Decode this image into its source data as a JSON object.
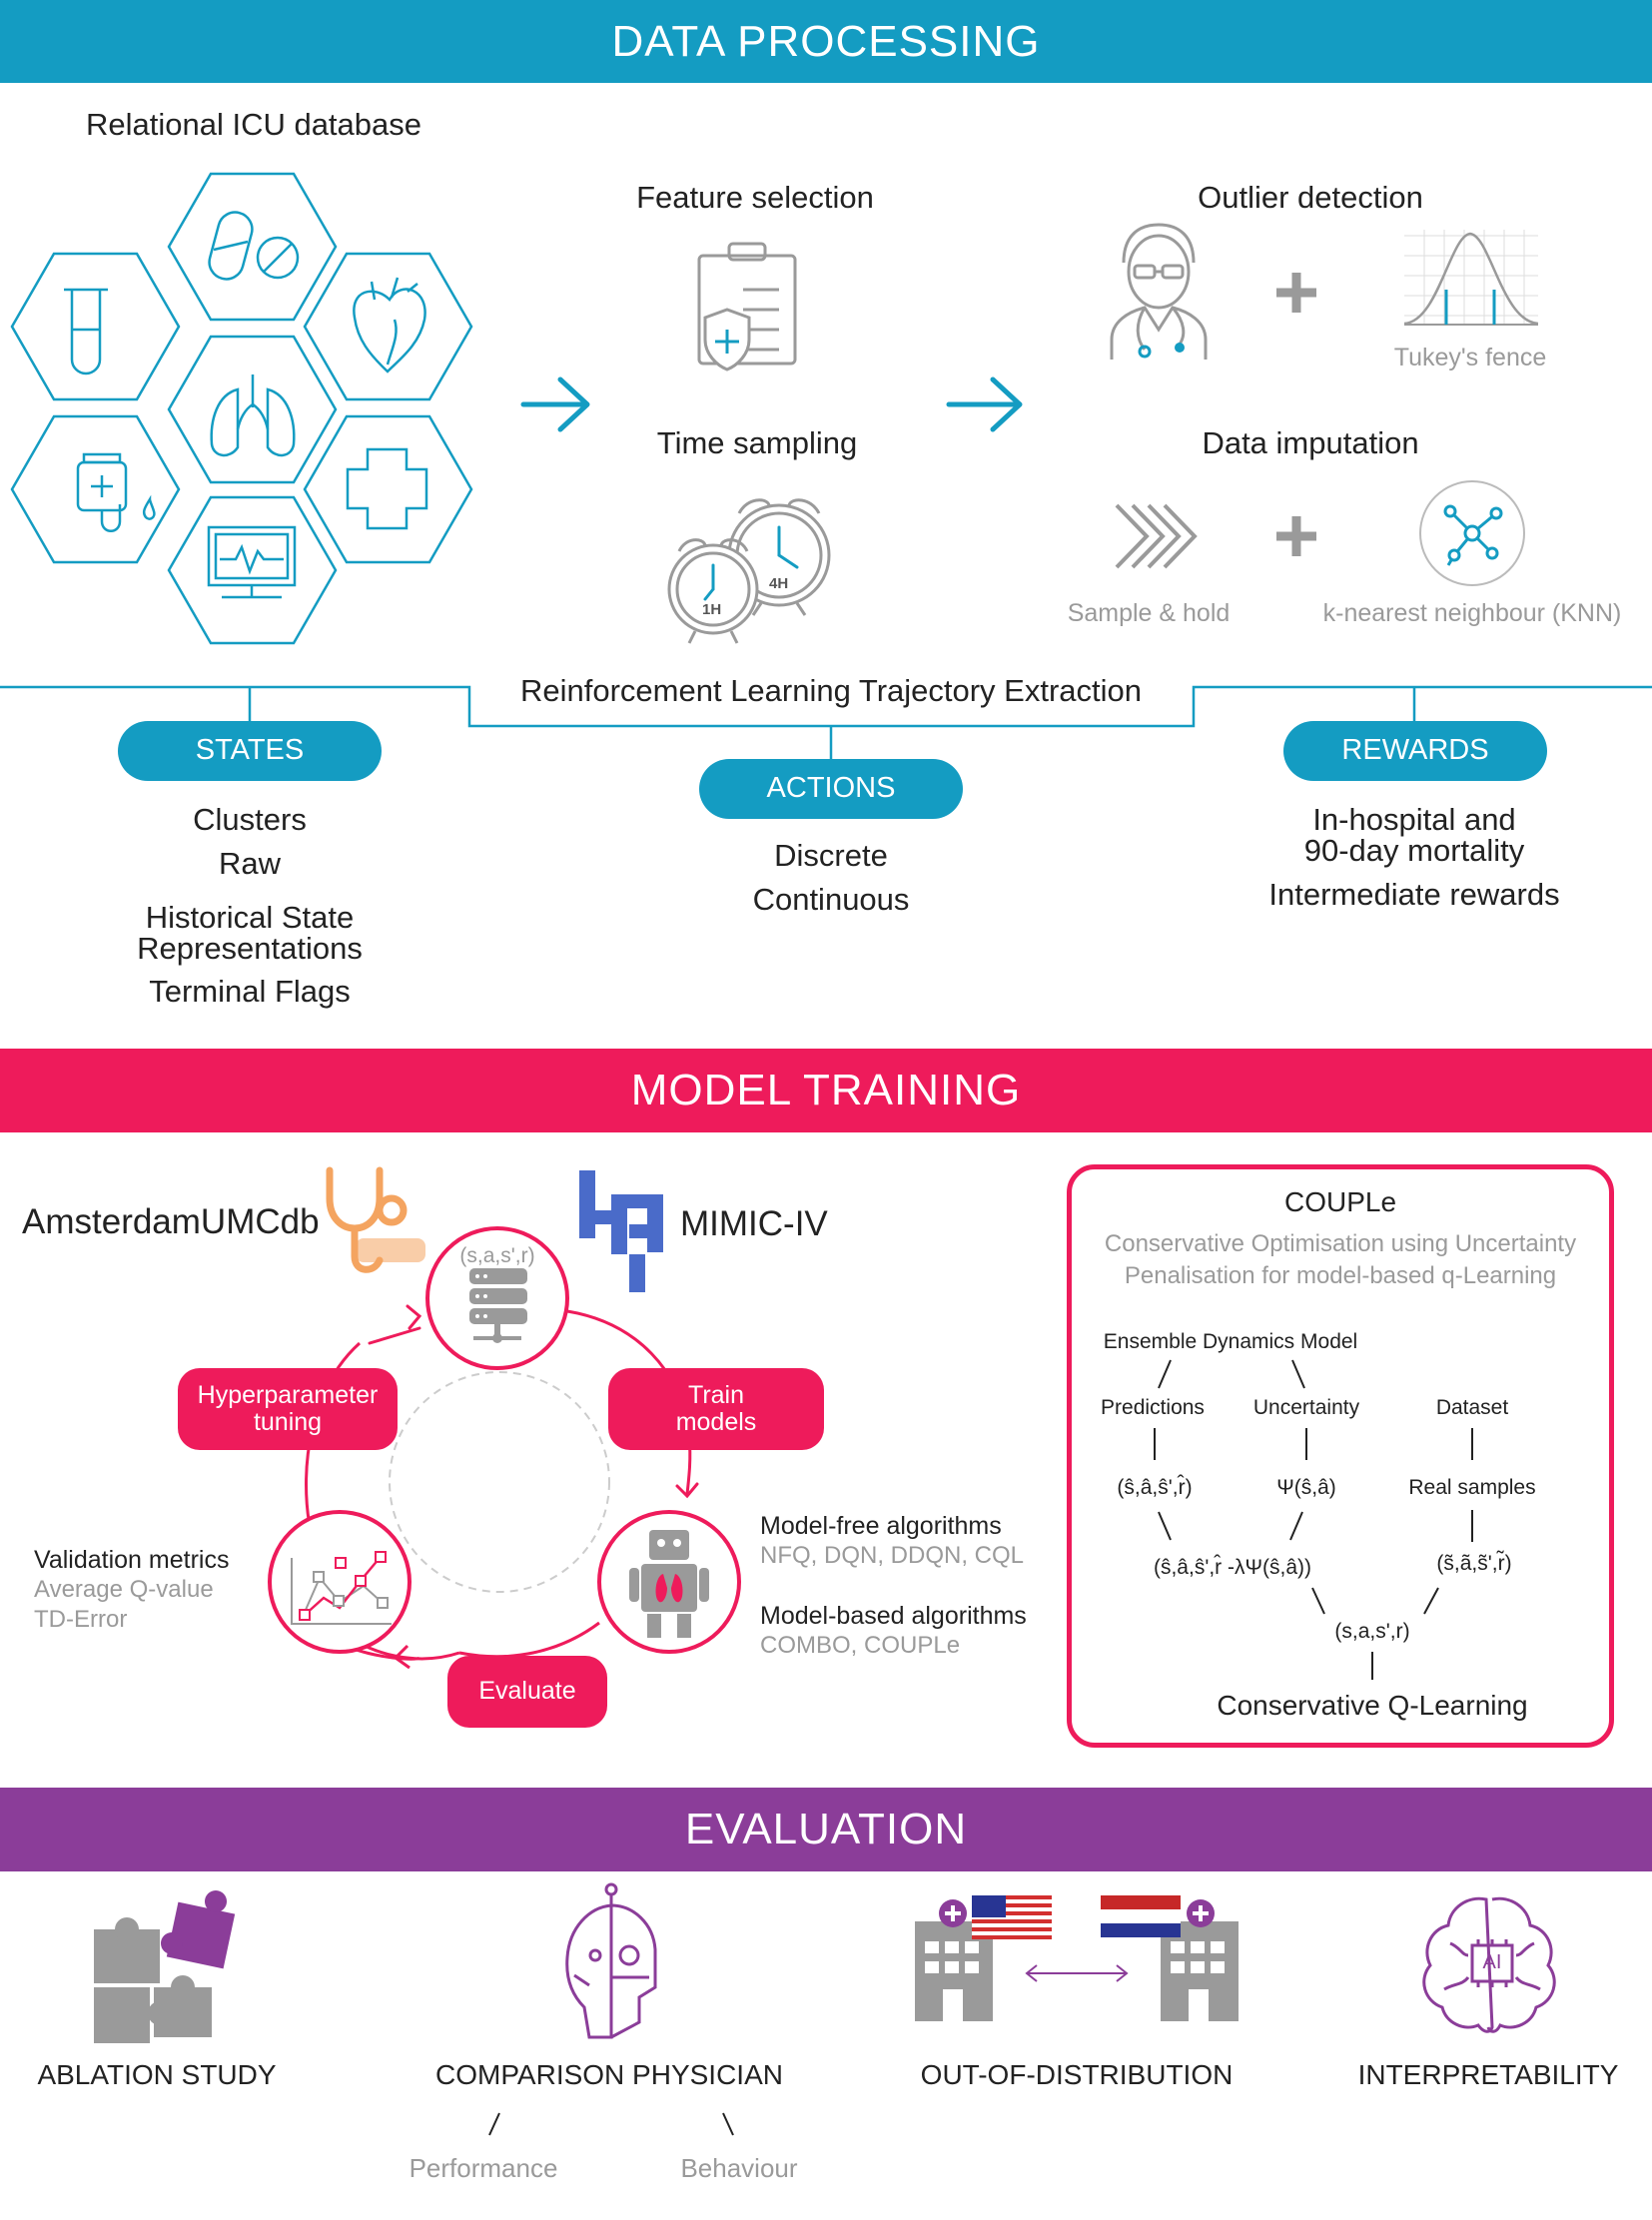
{
  "colors": {
    "processing": "#149cc2",
    "training": "#ee1b5b",
    "evaluation": "#8b3d99",
    "gray": "#9a9a9a"
  },
  "processing": {
    "banner": "DATA PROCESSING",
    "database_label": "Relational ICU database",
    "feature_selection": "Feature selection",
    "time_sampling": "Time sampling",
    "clock_1h": "1H",
    "clock_4h": "4H",
    "outlier_detection": "Outlier detection",
    "tukey": "Tukey's fence",
    "data_imputation": "Data imputation",
    "sample_hold": "Sample & hold",
    "knn": "k-nearest neighbour (KNN)",
    "trajectory": "Reinforcement Learning Trajectory Extraction",
    "states": {
      "label": "STATES",
      "items": [
        "Clusters",
        "Raw",
        "Historical State",
        "Representations",
        "Terminal Flags"
      ]
    },
    "actions": {
      "label": "ACTIONS",
      "items": [
        "Discrete",
        "Continuous"
      ]
    },
    "rewards": {
      "label": "REWARDS",
      "items": [
        "In-hospital and",
        "90-day mortality",
        "Intermediate rewards"
      ]
    }
  },
  "training": {
    "banner": "MODEL TRAINING",
    "amsterdam": "AmsterdamUMCdb",
    "mimic": "MIMIC-IV",
    "tuple": "(s,a,s',r)",
    "hyper": [
      "Hyperparameter",
      "tuning"
    ],
    "train": [
      "Train",
      "models"
    ],
    "evaluate": "Evaluate",
    "validation": {
      "title": "Validation metrics",
      "items": [
        "Average Q-value",
        "TD-Error"
      ]
    },
    "model_free": {
      "title": "Model-free algorithms",
      "items": "NFQ, DQN, DDQN, CQL"
    },
    "model_based": {
      "title": "Model-based algorithms",
      "items": "COMBO, COUPLe"
    },
    "couple": {
      "title": "COUPLe",
      "subtitle1": "Conservative Optimisation using Uncertainty",
      "subtitle2": "Penalisation for model-based q-Learning",
      "ensemble": "Ensemble Dynamics Model",
      "predictions": "Predictions",
      "uncertainty": "Uncertainty",
      "dataset": "Dataset",
      "pred_tuple": "(ŝ,â,ŝ',r̂)",
      "psi": "Ψ(ŝ,â)",
      "real_samples": "Real samples",
      "penalised": "(ŝ,â,ŝ',r̂ -λΨ(ŝ,â))",
      "real_tuple": "(s̃,ã,s̃',r̃)",
      "combined": "(s,a,s',r)",
      "cql": "Conservative Q-Learning"
    }
  },
  "evaluation": {
    "banner": "EVALUATION",
    "ablation": "ABLATION STUDY",
    "comparison": "COMPARISON PHYSICIAN",
    "performance": "Performance",
    "behaviour": "Behaviour",
    "ood": "OUT-OF-DISTRIBUTION",
    "interpretability": "INTERPRETABILITY",
    "ai_chip": "AI"
  }
}
